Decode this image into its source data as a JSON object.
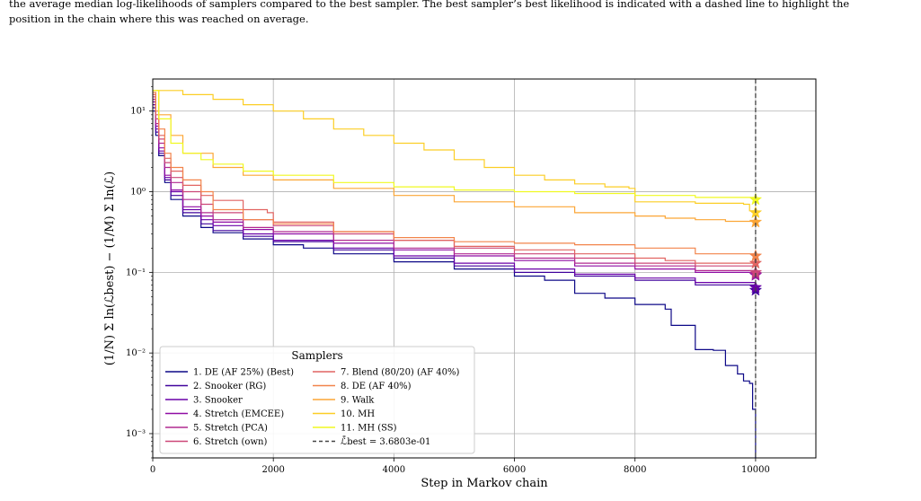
{
  "caption": {
    "line1": "the average median log-likelihoods of samplers compared to the best sampler. The best sampler’s best likelihood is indicated with a dashed line to highlight the",
    "line2": "position in the chain where this was reached on average."
  },
  "chart_data": {
    "type": "line",
    "title": "",
    "xlabel": "Step in Markov chain",
    "ylabel": "(1/N) Σ ln(ℒbest) − (1/M) Σ ln(ℒ)",
    "yscale": "log",
    "xlim": [
      0,
      11000
    ],
    "ylim": [
      0.0005,
      25
    ],
    "xticks": [
      0,
      2000,
      4000,
      6000,
      8000,
      10000
    ],
    "xtick_labels": [
      "0",
      "2000",
      "4000",
      "6000",
      "8000",
      "10000"
    ],
    "yticks": [
      0.001,
      0.01,
      0.1,
      1,
      10
    ],
    "ytick_labels": [
      "10⁻³",
      "10⁻²",
      "10⁻¹",
      "10⁰",
      "10¹"
    ],
    "grid": true,
    "legend": {
      "title": "Samplers",
      "placement": "lower-left"
    },
    "best_line": {
      "x": 10000,
      "label": "ℒ̄best = 3.6803e-01"
    },
    "series": [
      {
        "name": "1. DE (AF 25%) (Best)",
        "color": "#0d0887",
        "x": [
          0,
          50,
          100,
          200,
          300,
          500,
          800,
          1000,
          1500,
          2000,
          2500,
          3000,
          4000,
          5000,
          6000,
          6500,
          7000,
          7500,
          8000,
          8500,
          8600,
          9000,
          9300,
          9500,
          9700,
          9800,
          9900,
          9950,
          10000
        ],
        "y": [
          10,
          5,
          2.8,
          1.3,
          0.8,
          0.5,
          0.36,
          0.31,
          0.26,
          0.22,
          0.2,
          0.17,
          0.135,
          0.11,
          0.09,
          0.08,
          0.055,
          0.048,
          0.04,
          0.035,
          0.022,
          0.011,
          0.0108,
          0.007,
          0.0055,
          0.0045,
          0.0042,
          0.002,
          0.0004
        ]
      },
      {
        "name": "2. Snooker (RG)",
        "color": "#41049d",
        "x": [
          0,
          50,
          100,
          200,
          300,
          500,
          800,
          1000,
          1500,
          2000,
          3000,
          4000,
          5000,
          6000,
          7000,
          8000,
          9000,
          10000
        ],
        "y": [
          11,
          5.5,
          3,
          1.4,
          0.9,
          0.55,
          0.4,
          0.33,
          0.28,
          0.24,
          0.19,
          0.15,
          0.12,
          0.1,
          0.09,
          0.08,
          0.07,
          0.06
        ]
      },
      {
        "name": "3. Snooker",
        "color": "#6a00a8",
        "x": [
          0,
          50,
          100,
          200,
          300,
          500,
          800,
          1000,
          1500,
          2000,
          3000,
          4000,
          5000,
          6000,
          7000,
          8000,
          9000,
          10000
        ],
        "y": [
          12,
          6,
          3.2,
          1.5,
          1,
          0.6,
          0.45,
          0.38,
          0.3,
          0.25,
          0.2,
          0.16,
          0.13,
          0.11,
          0.095,
          0.085,
          0.075,
          0.065
        ]
      },
      {
        "name": "4. Stretch (EMCEE)",
        "color": "#8f0da4",
        "x": [
          0,
          50,
          100,
          200,
          300,
          500,
          800,
          1000,
          1500,
          2000,
          3000,
          4000,
          5000,
          6000,
          7000,
          8000,
          9000,
          10000
        ],
        "y": [
          13,
          6.5,
          3.5,
          1.6,
          1.05,
          0.65,
          0.5,
          0.42,
          0.34,
          0.3,
          0.23,
          0.19,
          0.16,
          0.14,
          0.12,
          0.11,
          0.1,
          0.092
        ]
      },
      {
        "name": "5. Stretch (PCA)",
        "color": "#b12a90",
        "x": [
          0,
          50,
          100,
          200,
          300,
          500,
          800,
          1000,
          1500,
          2000,
          3000,
          4000,
          5000,
          6000,
          7000,
          8000,
          9000,
          10000
        ],
        "y": [
          14,
          7,
          4,
          2,
          1.3,
          0.8,
          0.55,
          0.45,
          0.36,
          0.32,
          0.25,
          0.2,
          0.17,
          0.15,
          0.13,
          0.12,
          0.105,
          0.095
        ]
      },
      {
        "name": "6. Stretch (own)",
        "color": "#cc4778",
        "x": [
          0,
          50,
          100,
          200,
          300,
          500,
          800,
          1000,
          1500,
          2000,
          3000,
          4000,
          5000,
          6000,
          7000,
          8000,
          9000,
          10000
        ],
        "y": [
          15,
          8,
          4.5,
          2.3,
          1.5,
          1.0,
          0.7,
          0.55,
          0.45,
          0.38,
          0.3,
          0.25,
          0.2,
          0.17,
          0.15,
          0.13,
          0.12,
          0.1
        ]
      },
      {
        "name": "7. Blend (80/20) (AF 40%)",
        "color": "#e16462",
        "x": [
          0,
          50,
          100,
          200,
          300,
          500,
          800,
          1000,
          1500,
          1900,
          2000,
          3000,
          4000,
          5000,
          6000,
          7000,
          8000,
          8500,
          9000,
          10000
        ],
        "y": [
          16,
          9,
          5,
          2.6,
          1.8,
          1.2,
          0.9,
          0.78,
          0.6,
          0.55,
          0.42,
          0.32,
          0.25,
          0.21,
          0.19,
          0.17,
          0.15,
          0.14,
          0.13,
          0.13
        ]
      },
      {
        "name": "8. DE (AF 40%)",
        "color": "#f2844b",
        "x": [
          0,
          50,
          100,
          200,
          300,
          500,
          800,
          1000,
          1500,
          2000,
          3000,
          4000,
          5000,
          6000,
          7000,
          8000,
          9000,
          10000
        ],
        "y": [
          17,
          10,
          6,
          3,
          2,
          1.4,
          1.0,
          0.6,
          0.45,
          0.4,
          0.32,
          0.27,
          0.24,
          0.23,
          0.22,
          0.2,
          0.17,
          0.16
        ]
      },
      {
        "name": "9. Walk",
        "color": "#fca636",
        "x": [
          0,
          100,
          300,
          500,
          1000,
          1500,
          2000,
          3000,
          4000,
          5000,
          6000,
          7000,
          8000,
          8500,
          9000,
          9500,
          10000
        ],
        "y": [
          18,
          9,
          5,
          3,
          2,
          1.6,
          1.4,
          1.1,
          0.9,
          0.75,
          0.65,
          0.55,
          0.5,
          0.47,
          0.45,
          0.43,
          0.42
        ]
      },
      {
        "name": "10. MH",
        "color": "#fcce25",
        "x": [
          0,
          500,
          1000,
          1500,
          2000,
          2500,
          3000,
          3500,
          4000,
          4500,
          5000,
          5500,
          6000,
          6500,
          7000,
          7500,
          7900,
          8000,
          9000,
          9500,
          9800,
          9900,
          10000
        ],
        "y": [
          18,
          16,
          14,
          12,
          10,
          8,
          6,
          5,
          4,
          3.3,
          2.5,
          2,
          1.6,
          1.4,
          1.25,
          1.15,
          1.1,
          0.75,
          0.72,
          0.72,
          0.7,
          0.58,
          0.55
        ]
      },
      {
        "name": "11. MH (SS)",
        "color": "#f0f921",
        "x": [
          0,
          100,
          300,
          500,
          800,
          1000,
          1500,
          2000,
          3000,
          4000,
          5000,
          6000,
          7000,
          8000,
          9000,
          10000
        ],
        "y": [
          18,
          8,
          4,
          3,
          2.5,
          2.2,
          1.8,
          1.6,
          1.3,
          1.15,
          1.05,
          1.0,
          0.95,
          0.9,
          0.85,
          0.8
        ]
      }
    ]
  }
}
